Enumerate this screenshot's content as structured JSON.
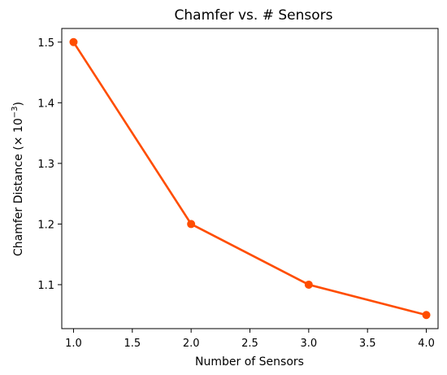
{
  "chart_data": {
    "type": "line",
    "title": "Chamfer vs. # Sensors",
    "xlabel": "Number of Sensors",
    "ylabel_prefix": "Chamfer Distance (× 10",
    "ylabel_exponent": "−3",
    "ylabel_suffix": ")",
    "x": [
      1.0,
      2.0,
      3.0,
      4.0
    ],
    "values": [
      1.5,
      1.2,
      1.1,
      1.05
    ],
    "xlim": [
      0.9,
      4.1
    ],
    "ylim": [
      1.0275,
      1.5225
    ],
    "xticks": [
      1.0,
      1.5,
      2.0,
      2.5,
      3.0,
      3.5,
      4.0
    ],
    "xtick_labels": [
      "1.0",
      "1.5",
      "2.0",
      "2.5",
      "3.0",
      "3.5",
      "4.0"
    ],
    "yticks": [
      1.1,
      1.2,
      1.3,
      1.4,
      1.5
    ],
    "ytick_labels": [
      "1.1",
      "1.2",
      "1.3",
      "1.4",
      "1.5"
    ],
    "grid": false,
    "line_color": "#ff4d00",
    "marker_color": "#ff4d00"
  }
}
